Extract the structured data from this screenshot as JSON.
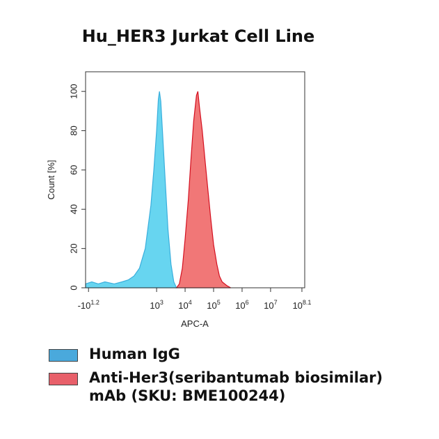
{
  "chart_data": {
    "type": "histogram-overlay",
    "title": "Hu_HER3 Jurkat Cell Line",
    "x_label": "APC-A",
    "y_label": "Count [%]",
    "xscale": "arcsinh",
    "xscale_cofactor": 18,
    "xlim": [
      -22,
      158000000
    ],
    "xticks": [
      {
        "value": -15.8,
        "label": "-10",
        "sup": "1.2"
      },
      {
        "value": 1000,
        "label": "10",
        "sup": "3"
      },
      {
        "value": 10000,
        "label": "10",
        "sup": "4"
      },
      {
        "value": 100000,
        "label": "10",
        "sup": "5"
      },
      {
        "value": 1000000,
        "label": "10",
        "sup": "6"
      },
      {
        "value": 10000000,
        "label": "10",
        "sup": "7"
      },
      {
        "value": 125900000,
        "label": "10",
        "sup": "8.1"
      }
    ],
    "ylim": [
      0,
      110
    ],
    "yticks": [
      0,
      20,
      40,
      60,
      80,
      100
    ],
    "series": [
      {
        "name": "Human IgG",
        "color": "#5fd3ef",
        "edge": "#3aaedc",
        "legend_color": "#4aa9dc",
        "x": [
          -22,
          -10,
          0,
          10,
          30,
          60,
          100,
          160,
          250,
          400,
          630,
          800,
          1000,
          1150,
          1260,
          1400,
          1600,
          2000,
          2500,
          3200,
          4000,
          5000
        ],
        "values": [
          2,
          3,
          2,
          3,
          2,
          3,
          4,
          6,
          10,
          20,
          42,
          60,
          80,
          96,
          100,
          95,
          80,
          55,
          30,
          12,
          3,
          0
        ]
      },
      {
        "name": "Anti-Her3(seribantumab biosimilar) mAb (SKU: BME100244)",
        "color": "#f07070",
        "edge": "#d41020",
        "legend_color": "#e8606a",
        "x": [
          5000,
          6300,
          8000,
          10000,
          13000,
          16000,
          20000,
          25000,
          28000,
          32000,
          40000,
          50000,
          63000,
          80000,
          100000,
          130000,
          160000,
          200000,
          300000,
          400000
        ],
        "values": [
          0,
          2,
          10,
          25,
          45,
          65,
          85,
          98,
          100,
          92,
          80,
          65,
          50,
          35,
          22,
          12,
          6,
          3,
          1,
          0
        ]
      }
    ]
  }
}
